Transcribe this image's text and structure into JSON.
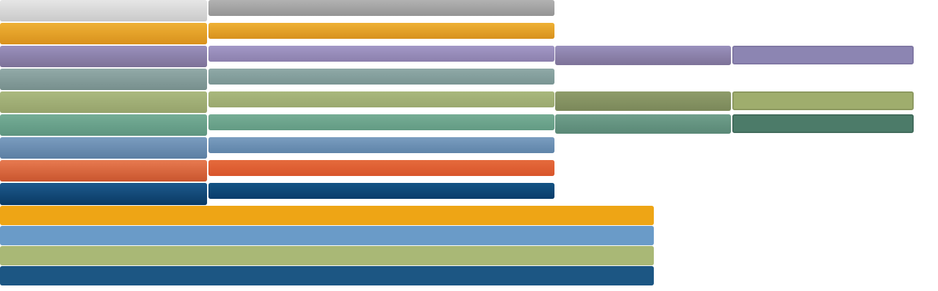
{
  "colors": {
    "gray": "#d6d6d6",
    "orange": "#e3a024",
    "purple": "#8c82ab",
    "teal": "#869d9b",
    "olive": "#a0ae75",
    "green": "#6aa28b",
    "blue": "#6a8db1",
    "red": "#d8663b",
    "navy": "#134b79",
    "wide_orange": "#eea515",
    "wide_blue": "#6a9bc8",
    "wide_olive": "#a9b876",
    "wide_navy": "#1c5683"
  }
}
